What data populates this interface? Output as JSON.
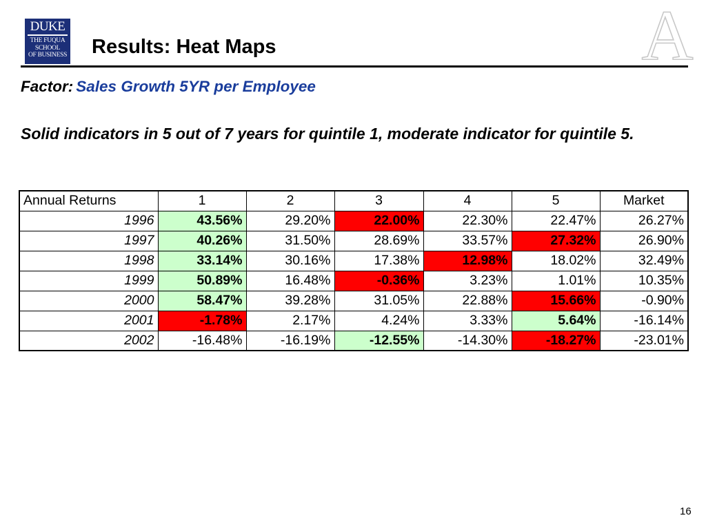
{
  "logo": {
    "line1": "DUKE",
    "line2": "THE FUQUA",
    "line3": "SCHOOL",
    "line4": "OF BUSINESS"
  },
  "watermark_letter": "A",
  "title": "Results:  Heat Maps",
  "factor": {
    "label": "Factor:",
    "value": "Sales Growth 5YR per Employee"
  },
  "description": "Solid indicators in 5 out of 7 years for quintile 1, moderate indicator for quintile 5.",
  "colors": {
    "good": "#ccffcc",
    "bad": "#ff0000",
    "factor_value": "#1a3d9c",
    "logo_bg": "#1c2f78"
  },
  "table": {
    "headers": [
      "Annual Returns",
      "1",
      "2",
      "3",
      "4",
      "5",
      "Market"
    ],
    "rows": [
      {
        "year": "1996",
        "cells": [
          {
            "v": "43.56%",
            "h": "good"
          },
          {
            "v": "29.20%",
            "h": ""
          },
          {
            "v": "22.00%",
            "h": "bad"
          },
          {
            "v": "22.30%",
            "h": ""
          },
          {
            "v": "22.47%",
            "h": ""
          },
          {
            "v": "26.27%",
            "h": ""
          }
        ]
      },
      {
        "year": "1997",
        "cells": [
          {
            "v": "40.26%",
            "h": "good"
          },
          {
            "v": "31.50%",
            "h": ""
          },
          {
            "v": "28.69%",
            "h": ""
          },
          {
            "v": "33.57%",
            "h": ""
          },
          {
            "v": "27.32%",
            "h": "bad"
          },
          {
            "v": "26.90%",
            "h": ""
          }
        ]
      },
      {
        "year": "1998",
        "cells": [
          {
            "v": "33.14%",
            "h": "good"
          },
          {
            "v": "30.16%",
            "h": ""
          },
          {
            "v": "17.38%",
            "h": ""
          },
          {
            "v": "12.98%",
            "h": "bad"
          },
          {
            "v": "18.02%",
            "h": ""
          },
          {
            "v": "32.49%",
            "h": ""
          }
        ]
      },
      {
        "year": "1999",
        "cells": [
          {
            "v": "50.89%",
            "h": "good"
          },
          {
            "v": "16.48%",
            "h": ""
          },
          {
            "v": "-0.36%",
            "h": "bad"
          },
          {
            "v": "3.23%",
            "h": ""
          },
          {
            "v": "1.01%",
            "h": ""
          },
          {
            "v": "10.35%",
            "h": ""
          }
        ]
      },
      {
        "year": "2000",
        "cells": [
          {
            "v": "58.47%",
            "h": "good"
          },
          {
            "v": "39.28%",
            "h": ""
          },
          {
            "v": "31.05%",
            "h": ""
          },
          {
            "v": "22.88%",
            "h": ""
          },
          {
            "v": "15.66%",
            "h": "bad"
          },
          {
            "v": "-0.90%",
            "h": ""
          }
        ]
      },
      {
        "year": "2001",
        "cells": [
          {
            "v": "-1.78%",
            "h": "bad"
          },
          {
            "v": "2.17%",
            "h": ""
          },
          {
            "v": "4.24%",
            "h": ""
          },
          {
            "v": "3.33%",
            "h": ""
          },
          {
            "v": "5.64%",
            "h": "good"
          },
          {
            "v": "-16.14%",
            "h": ""
          }
        ]
      },
      {
        "year": "2002",
        "cells": [
          {
            "v": "-16.48%",
            "h": ""
          },
          {
            "v": "-16.19%",
            "h": ""
          },
          {
            "v": "-12.55%",
            "h": "good"
          },
          {
            "v": "-14.30%",
            "h": ""
          },
          {
            "v": "-18.27%",
            "h": "bad"
          },
          {
            "v": "-23.01%",
            "h": ""
          }
        ]
      }
    ]
  },
  "page_number": "16"
}
